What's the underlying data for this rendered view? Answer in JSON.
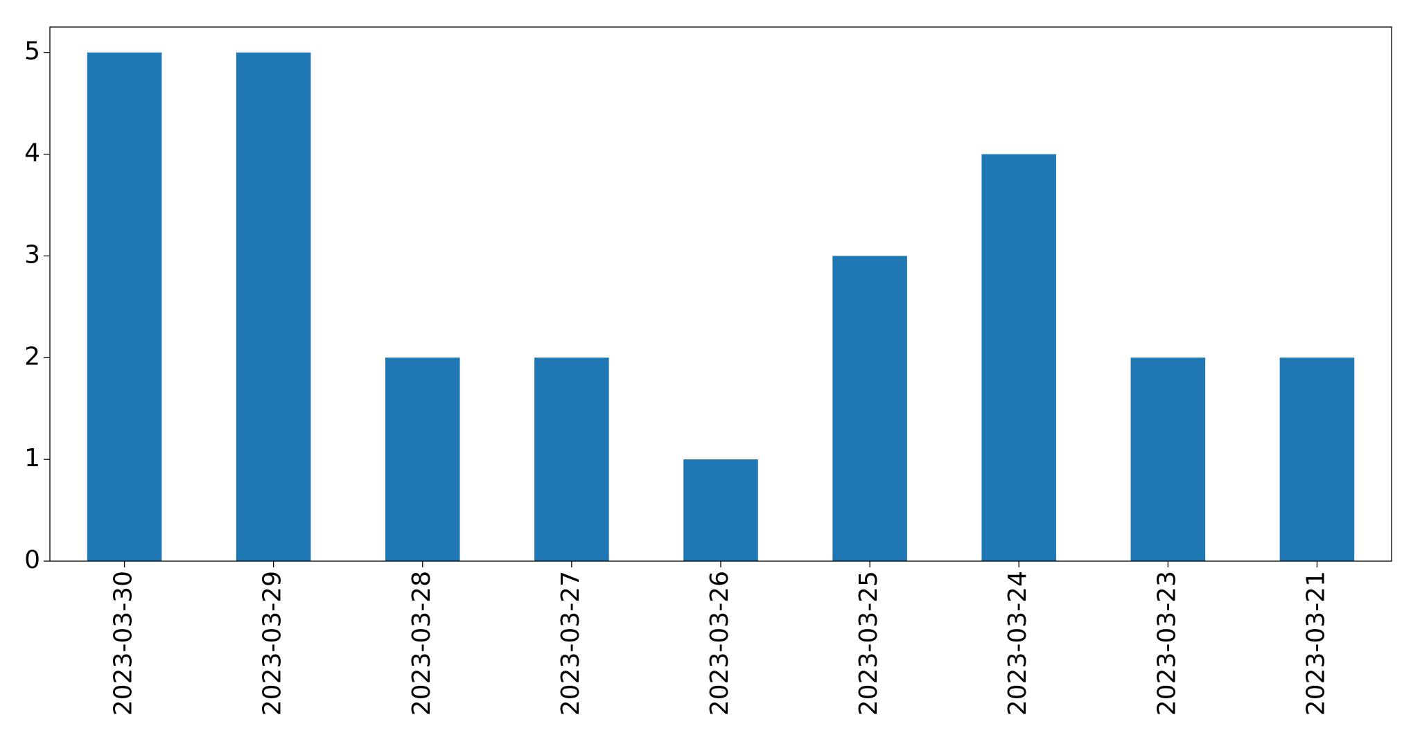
{
  "chart_data": {
    "type": "bar",
    "categories": [
      "2023-03-30",
      "2023-03-29",
      "2023-03-28",
      "2023-03-27",
      "2023-03-26",
      "2023-03-25",
      "2023-03-24",
      "2023-03-23",
      "2023-03-21"
    ],
    "values": [
      5,
      5,
      2,
      2,
      1,
      3,
      4,
      2,
      2
    ],
    "color": "#1f77b4",
    "ylim": [
      0,
      5.25
    ],
    "yticks": [
      0,
      1,
      2,
      3,
      4,
      5
    ],
    "grid": false
  }
}
